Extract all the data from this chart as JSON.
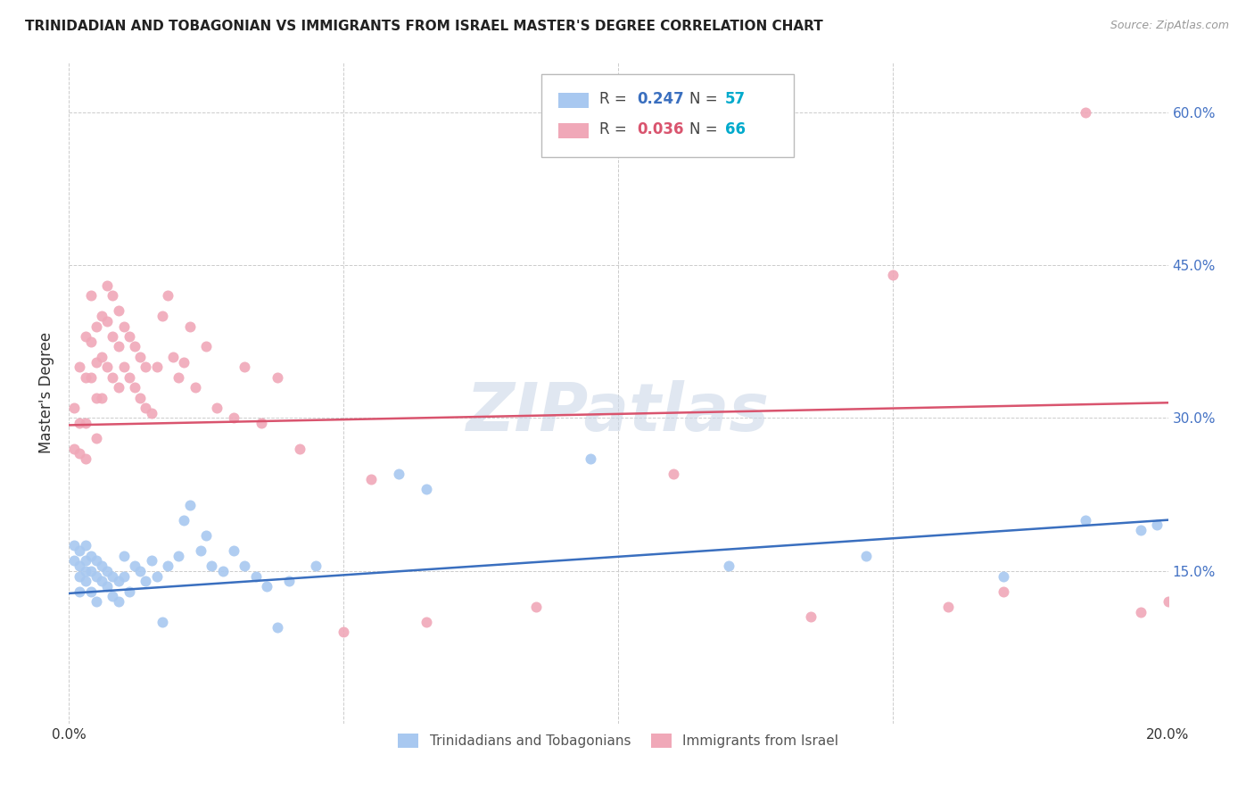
{
  "title": "TRINIDADIAN AND TOBAGONIAN VS IMMIGRANTS FROM ISRAEL MASTER'S DEGREE CORRELATION CHART",
  "source": "Source: ZipAtlas.com",
  "ylabel": "Master's Degree",
  "blue_color": "#A8C8F0",
  "pink_color": "#F0A8B8",
  "blue_line_color": "#3A6FBF",
  "pink_line_color": "#D9546E",
  "blue_R": 0.247,
  "blue_N": 57,
  "pink_R": 0.036,
  "pink_N": 66,
  "x_min": 0.0,
  "x_max": 0.2,
  "y_min": 0.0,
  "y_max": 0.65,
  "x_ticks": [
    0.0,
    0.05,
    0.1,
    0.15,
    0.2
  ],
  "y_ticks": [
    0.0,
    0.15,
    0.3,
    0.45,
    0.6
  ],
  "blue_points_x": [
    0.001,
    0.001,
    0.002,
    0.002,
    0.002,
    0.002,
    0.003,
    0.003,
    0.003,
    0.003,
    0.004,
    0.004,
    0.004,
    0.005,
    0.005,
    0.005,
    0.006,
    0.006,
    0.007,
    0.007,
    0.008,
    0.008,
    0.009,
    0.009,
    0.01,
    0.01,
    0.011,
    0.012,
    0.013,
    0.014,
    0.015,
    0.016,
    0.017,
    0.018,
    0.02,
    0.021,
    0.022,
    0.024,
    0.025,
    0.026,
    0.028,
    0.03,
    0.032,
    0.034,
    0.036,
    0.038,
    0.04,
    0.045,
    0.06,
    0.065,
    0.095,
    0.12,
    0.145,
    0.17,
    0.185,
    0.195,
    0.198
  ],
  "blue_points_y": [
    0.175,
    0.16,
    0.17,
    0.155,
    0.145,
    0.13,
    0.175,
    0.16,
    0.15,
    0.14,
    0.165,
    0.15,
    0.13,
    0.16,
    0.145,
    0.12,
    0.155,
    0.14,
    0.15,
    0.135,
    0.145,
    0.125,
    0.14,
    0.12,
    0.165,
    0.145,
    0.13,
    0.155,
    0.15,
    0.14,
    0.16,
    0.145,
    0.1,
    0.155,
    0.165,
    0.2,
    0.215,
    0.17,
    0.185,
    0.155,
    0.15,
    0.17,
    0.155,
    0.145,
    0.135,
    0.095,
    0.14,
    0.155,
    0.245,
    0.23,
    0.26,
    0.155,
    0.165,
    0.145,
    0.2,
    0.19,
    0.195
  ],
  "pink_points_x": [
    0.001,
    0.001,
    0.002,
    0.002,
    0.002,
    0.003,
    0.003,
    0.003,
    0.003,
    0.004,
    0.004,
    0.004,
    0.005,
    0.005,
    0.005,
    0.005,
    0.006,
    0.006,
    0.006,
    0.007,
    0.007,
    0.007,
    0.008,
    0.008,
    0.008,
    0.009,
    0.009,
    0.009,
    0.01,
    0.01,
    0.011,
    0.011,
    0.012,
    0.012,
    0.013,
    0.013,
    0.014,
    0.014,
    0.015,
    0.016,
    0.017,
    0.018,
    0.019,
    0.02,
    0.021,
    0.022,
    0.023,
    0.025,
    0.027,
    0.03,
    0.032,
    0.035,
    0.038,
    0.042,
    0.05,
    0.055,
    0.065,
    0.085,
    0.11,
    0.135,
    0.15,
    0.16,
    0.17,
    0.185,
    0.195,
    0.2
  ],
  "pink_points_y": [
    0.31,
    0.27,
    0.35,
    0.295,
    0.265,
    0.38,
    0.34,
    0.295,
    0.26,
    0.42,
    0.375,
    0.34,
    0.39,
    0.355,
    0.32,
    0.28,
    0.4,
    0.36,
    0.32,
    0.43,
    0.395,
    0.35,
    0.42,
    0.38,
    0.34,
    0.405,
    0.37,
    0.33,
    0.39,
    0.35,
    0.38,
    0.34,
    0.37,
    0.33,
    0.36,
    0.32,
    0.35,
    0.31,
    0.305,
    0.35,
    0.4,
    0.42,
    0.36,
    0.34,
    0.355,
    0.39,
    0.33,
    0.37,
    0.31,
    0.3,
    0.35,
    0.295,
    0.34,
    0.27,
    0.09,
    0.24,
    0.1,
    0.115,
    0.245,
    0.105,
    0.44,
    0.115,
    0.13,
    0.6,
    0.11,
    0.12
  ]
}
